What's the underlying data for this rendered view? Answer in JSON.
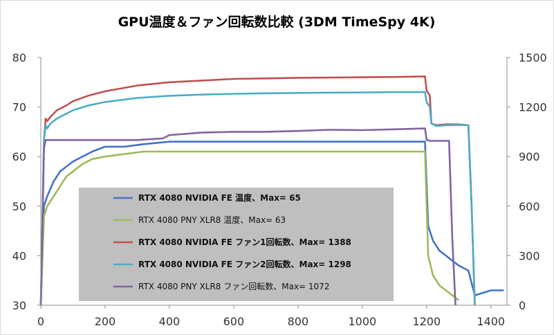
{
  "chart_data": {
    "type": "line",
    "title": "GPU温度＆ファン回転数比較 (3DM TimeSpy 4K)",
    "xlabel": "",
    "ylabel_left": "",
    "ylabel_right": "",
    "xlim": [
      0,
      1450
    ],
    "ylim_left": [
      30,
      80
    ],
    "ylim_right": [
      0,
      1500
    ],
    "x_ticks": [
      0,
      200,
      400,
      600,
      800,
      1000,
      1200,
      1400
    ],
    "y_ticks_left": [
      30,
      40,
      50,
      60,
      70,
      80
    ],
    "y_ticks_right": [
      0,
      300,
      600,
      900,
      1200,
      1500
    ],
    "grid": false,
    "legend_position": "center-left",
    "series": [
      {
        "name": "RTX 4080 NVIDIA FE 温度、Max= 65",
        "axis": "left",
        "color": "#4472C4",
        "legend_bold": true,
        "x": [
          0,
          10,
          20,
          40,
          60,
          80,
          100,
          130,
          160,
          200,
          260,
          320,
          400,
          500,
          600,
          700,
          800,
          900,
          1000,
          1100,
          1195,
          1205,
          1220,
          1240,
          1260,
          1280,
          1300,
          1330,
          1350,
          1400,
          1440
        ],
        "y": [
          30,
          50,
          52,
          55,
          57,
          58,
          59,
          60,
          61,
          62,
          62,
          62.5,
          63,
          63,
          63,
          63,
          63,
          63,
          63,
          63,
          63,
          46,
          43,
          41,
          40,
          39,
          38,
          37,
          32,
          33,
          33
        ]
      },
      {
        "name": "RTX 4080 PNY XLR8 温度、Max= 63",
        "axis": "left",
        "color": "#9BBB59",
        "legend_bold": false,
        "x": [
          0,
          10,
          20,
          40,
          60,
          80,
          100,
          130,
          160,
          200,
          260,
          320,
          400,
          500,
          600,
          700,
          800,
          900,
          1000,
          1100,
          1195,
          1205,
          1220,
          1240,
          1260,
          1280,
          1300
        ],
        "y": [
          30,
          48,
          50,
          52,
          54,
          56,
          57,
          58.5,
          59.5,
          60,
          60.5,
          61,
          61,
          61,
          61,
          61,
          61,
          61,
          61,
          61,
          61,
          40,
          36,
          34,
          33,
          32,
          31
        ]
      },
      {
        "name": "RTX 4080 NVIDIA FE ファン1回転数、Max= 1388",
        "axis": "right",
        "color": "#C0504D",
        "legend_bold": true,
        "x": [
          0,
          10,
          15,
          20,
          30,
          50,
          80,
          100,
          150,
          200,
          300,
          400,
          500,
          600,
          700,
          800,
          900,
          1000,
          1100,
          1195,
          1200,
          1210,
          1215,
          1230,
          1260,
          1300,
          1330,
          1340,
          1350
        ],
        "y": [
          0,
          1000,
          1130,
          1115,
          1140,
          1180,
          1210,
          1235,
          1270,
          1295,
          1330,
          1350,
          1360,
          1370,
          1373,
          1377,
          1378,
          1380,
          1382,
          1385,
          1300,
          1270,
          1100,
          1090,
          1095,
          1095,
          1090,
          600,
          0
        ]
      },
      {
        "name": "RTX 4080 NVIDIA FE ファン2回転数、Max= 1298",
        "axis": "right",
        "color": "#4BACC6",
        "legend_bold": true,
        "x": [
          0,
          10,
          15,
          20,
          30,
          50,
          80,
          100,
          150,
          200,
          300,
          400,
          500,
          600,
          700,
          800,
          900,
          1000,
          1100,
          1195,
          1200,
          1210,
          1215,
          1230,
          1260,
          1300,
          1330,
          1340,
          1350
        ],
        "y": [
          0,
          1000,
          1090,
          1070,
          1100,
          1130,
          1160,
          1180,
          1210,
          1230,
          1255,
          1268,
          1275,
          1280,
          1283,
          1285,
          1287,
          1288,
          1290,
          1290,
          1230,
          1200,
          1100,
          1085,
          1090,
          1092,
          1090,
          600,
          0
        ]
      },
      {
        "name": "RTX 4080 PNY XLR8 ファン回転数、Max= 1072",
        "axis": "right",
        "color": "#8064A2",
        "legend_bold": false,
        "x": [
          0,
          10,
          15,
          30,
          100,
          200,
          300,
          380,
          400,
          500,
          600,
          700,
          800,
          900,
          1000,
          1100,
          1195,
          1200,
          1210,
          1270,
          1280,
          1290
        ],
        "y": [
          0,
          950,
          1000,
          1000,
          1000,
          1000,
          1000,
          1010,
          1030,
          1045,
          1050,
          1050,
          1055,
          1062,
          1060,
          1065,
          1070,
          1000,
          995,
          995,
          400,
          0
        ]
      }
    ]
  }
}
